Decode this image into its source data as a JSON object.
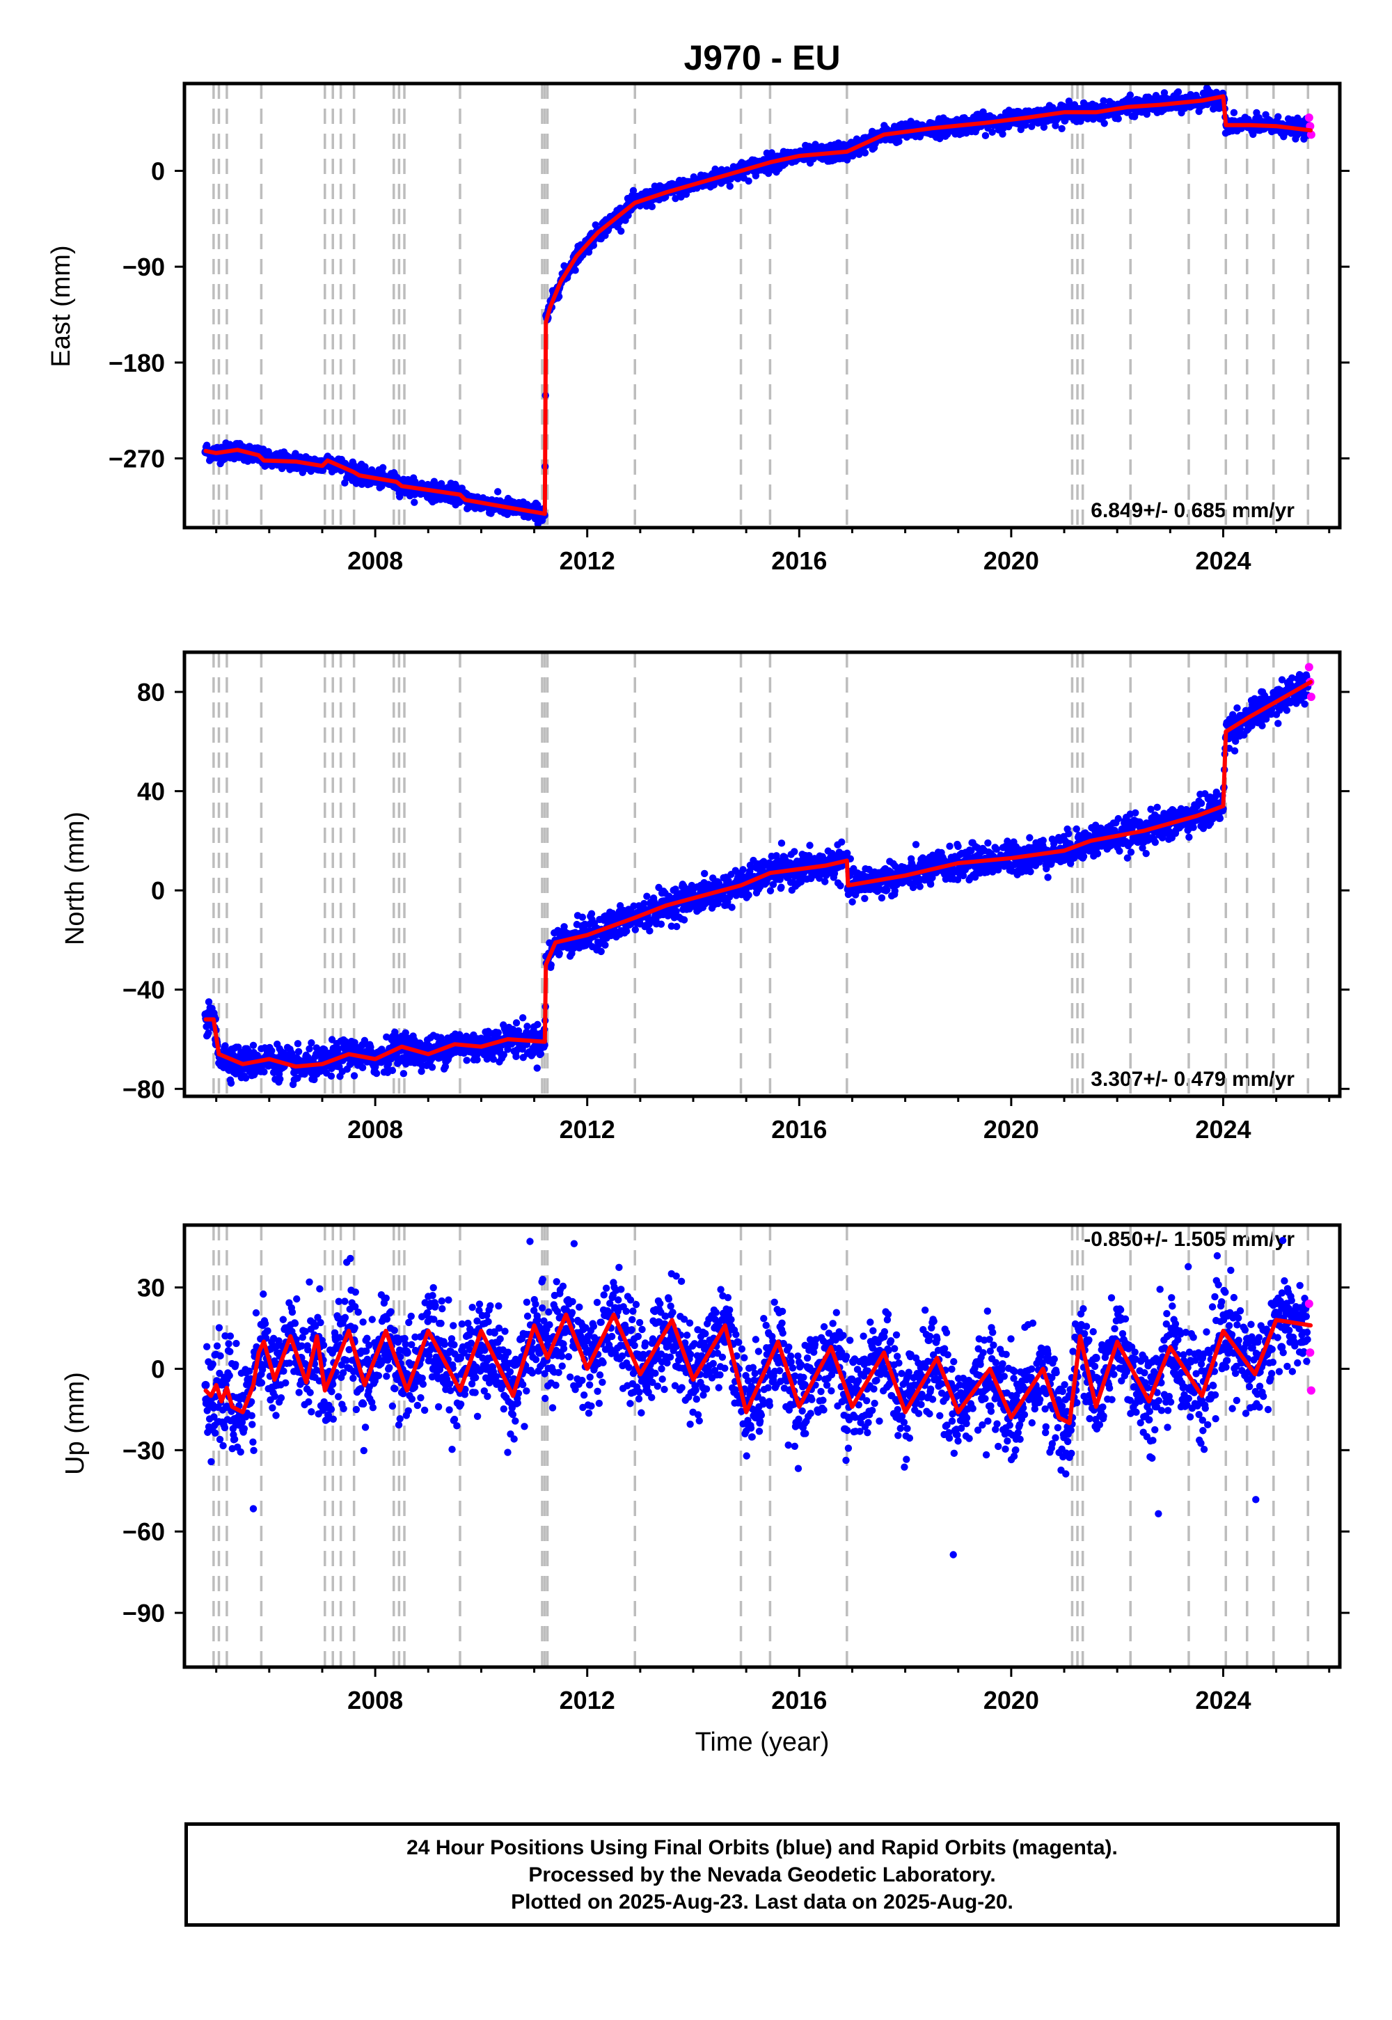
{
  "chart_data": {
    "type": "scatter",
    "title": "J970 - EU",
    "xlabel": "Time (year)",
    "x_range": [
      2004.4,
      2026.2
    ],
    "x_ticks": [
      2008,
      2012,
      2016,
      2020,
      2024
    ],
    "x_ticklabels": [
      "2008",
      "2012",
      "2016",
      "2020",
      "2024"
    ],
    "grid": false,
    "colors": {
      "final_orbits": "#0000ff",
      "rapid_orbits": "#ff00ff",
      "model_fit": "#ff0000",
      "event_lines": "#bdbdbd"
    },
    "event_lines_year": [
      2004.95,
      2005.05,
      2005.2,
      2005.85,
      2007.05,
      2007.2,
      2007.35,
      2007.6,
      2008.35,
      2008.45,
      2008.55,
      2009.6,
      2011.15,
      2011.2,
      2011.25,
      2012.9,
      2014.9,
      2015.45,
      2016.9,
      2021.15,
      2021.25,
      2021.35,
      2022.25,
      2023.35,
      2024.05,
      2024.45,
      2024.95,
      2025.6
    ],
    "panels": [
      {
        "name": "east",
        "ylabel": "East (mm)",
        "ylim": [
          -335,
          82
        ],
        "y_ticks": [
          0,
          -90,
          -180,
          -270
        ],
        "y_ticklabels": [
          "0",
          "−90",
          "−180",
          "−270"
        ],
        "rate_label": "6.849+/- 0.685 mm/yr",
        "rate_position": "bottom-right",
        "model_fit": {
          "x": [
            2004.8,
            2005.0,
            2005.4,
            2005.8,
            2005.9,
            2006.5,
            2007.0,
            2007.1,
            2007.6,
            2007.7,
            2008.4,
            2008.5,
            2009.6,
            2009.7,
            2010.5,
            2011.2,
            2011.22,
            2011.3,
            2011.5,
            2011.8,
            2012.2,
            2012.9,
            2013.5,
            2014.2,
            2014.9,
            2015.45,
            2016.0,
            2016.9,
            2017.6,
            2018.5,
            2019.5,
            2020.3,
            2021.0,
            2021.6,
            2022.2,
            2022.8,
            2023.6,
            2024.0,
            2024.05,
            2024.5,
            2025.0,
            2025.65
          ],
          "y": [
            -263,
            -265,
            -262,
            -267,
            -272,
            -273,
            -277,
            -272,
            -283,
            -286,
            -292,
            -296,
            -304,
            -309,
            -316,
            -322,
            -142,
            -128,
            -104,
            -80,
            -58,
            -30,
            -20,
            -10,
            0,
            8,
            14,
            18,
            34,
            40,
            45,
            50,
            55,
            55,
            60,
            62,
            66,
            70,
            43,
            43,
            42,
            38
          ]
        },
        "final_orbits": {
          "x": [
            2004.8,
            2005.3,
            2006.0,
            2006.8,
            2007.5,
            2008.2,
            2009.0,
            2009.8,
            2010.5,
            2011.1,
            2011.25,
            2011.6,
            2012.0,
            2012.5,
            2013.0,
            2013.8,
            2014.6,
            2015.5,
            2016.5,
            2017.5,
            2018.5,
            2019.5,
            2020.5,
            2021.5,
            2022.5,
            2023.5,
            2024.2,
            2024.8,
            2025.5
          ],
          "y": [
            -264,
            -262,
            -272,
            -275,
            -284,
            -292,
            -300,
            -308,
            -315,
            -322,
            -138,
            -100,
            -72,
            -50,
            -28,
            -15,
            -4,
            10,
            17,
            35,
            42,
            48,
            52,
            55,
            62,
            66,
            43,
            41,
            38
          ]
        },
        "rapid_orbits": {
          "x": [
            2025.62,
            2025.64,
            2025.66
          ],
          "y": [
            50,
            42,
            34
          ]
        }
      },
      {
        "name": "north",
        "ylabel": "North (mm)",
        "ylim": [
          -83,
          96
        ],
        "y_ticks": [
          80,
          40,
          0,
          -40,
          -80
        ],
        "y_ticklabels": [
          "80",
          "40",
          "0",
          "−40",
          "−80"
        ],
        "rate_label": "3.307+/- 0.479 mm/yr",
        "rate_position": "bottom-right",
        "model_fit": {
          "x": [
            2004.8,
            2004.95,
            2005.05,
            2005.5,
            2006.0,
            2006.5,
            2007.0,
            2007.5,
            2008.0,
            2008.5,
            2009.0,
            2009.5,
            2010.0,
            2010.5,
            2011.2,
            2011.22,
            2011.4,
            2012.0,
            2012.9,
            2013.5,
            2014.9,
            2015.45,
            2016.5,
            2016.9,
            2016.92,
            2018.0,
            2019.0,
            2020.0,
            2021.0,
            2021.5,
            2022.5,
            2023.5,
            2024.0,
            2024.05,
            2024.5,
            2025.0,
            2025.65
          ],
          "y": [
            -52,
            -52,
            -66,
            -70,
            -68,
            -71,
            -70,
            -66,
            -68,
            -63,
            -66,
            -62,
            -63,
            -60,
            -61,
            -30,
            -21,
            -18,
            -11,
            -6,
            2,
            7,
            10,
            12,
            2,
            6,
            11,
            13,
            16,
            20,
            24,
            30,
            34,
            64,
            70,
            76,
            84
          ]
        },
        "final_orbits": {
          "x": [
            2004.8,
            2005.0,
            2005.5,
            2006.2,
            2007.0,
            2007.8,
            2008.6,
            2009.4,
            2010.2,
            2011.1,
            2011.3,
            2012.0,
            2012.8,
            2013.6,
            2014.4,
            2015.2,
            2016.0,
            2016.8,
            2017.5,
            2018.5,
            2019.5,
            2020.5,
            2021.5,
            2022.5,
            2023.5,
            2024.2,
            2024.8,
            2025.5
          ],
          "y": [
            -50,
            -62,
            -70,
            -72,
            -70,
            -67,
            -65,
            -64,
            -62,
            -60,
            -26,
            -18,
            -12,
            -6,
            0,
            4,
            9,
            10,
            4,
            8,
            12,
            15,
            20,
            25,
            30,
            66,
            74,
            82
          ]
        },
        "rapid_orbits": {
          "x": [
            2025.62,
            2025.64,
            2025.66
          ],
          "y": [
            90,
            84,
            78
          ]
        }
      },
      {
        "name": "up",
        "ylabel": "Up (mm)",
        "ylim": [
          -110,
          53
        ],
        "y_ticks": [
          30,
          0,
          -30,
          -60,
          -90
        ],
        "y_ticklabels": [
          "30",
          "0",
          "−30",
          "−60",
          "−90"
        ],
        "rate_label": "-0.850+/- 1.505 mm/yr",
        "rate_position": "top-right",
        "model_fit": {
          "x": [
            2004.8,
            2004.9,
            2005.0,
            2005.1,
            2005.2,
            2005.3,
            2005.5,
            2005.7,
            2005.8,
            2005.9,
            2006.1,
            2006.4,
            2006.7,
            2006.9,
            2007.05,
            2007.3,
            2007.5,
            2007.8,
            2008.2,
            2008.6,
            2009.0,
            2009.6,
            2010.0,
            2010.6,
            2011.0,
            2011.25,
            2011.6,
            2012.0,
            2012.5,
            2013.0,
            2013.6,
            2014.0,
            2014.6,
            2015.0,
            2015.6,
            2016.0,
            2016.6,
            2017.0,
            2017.6,
            2018.0,
            2018.6,
            2019.0,
            2019.6,
            2020.0,
            2020.6,
            2020.9,
            2021.1,
            2021.3,
            2021.6,
            2022.0,
            2022.6,
            2023.0,
            2023.6,
            2024.0,
            2024.6,
            2025.0,
            2025.65
          ],
          "y": [
            -8,
            -10,
            -6,
            -12,
            -7,
            -14,
            -16,
            -6,
            6,
            10,
            -4,
            12,
            -5,
            12,
            -8,
            4,
            14,
            -6,
            14,
            -8,
            14,
            -8,
            14,
            -10,
            16,
            4,
            20,
            0,
            20,
            -2,
            18,
            -4,
            16,
            -16,
            10,
            -14,
            8,
            -14,
            6,
            -16,
            4,
            -16,
            0,
            -18,
            0,
            -18,
            -20,
            12,
            -14,
            10,
            -12,
            8,
            -10,
            14,
            -2,
            18,
            16
          ]
        },
        "final_orbits": {
          "x": [
            2004.8,
            2005.2,
            2005.6,
            2006.1,
            2006.6,
            2007.1,
            2007.6,
            2008.1,
            2008.6,
            2009.1,
            2009.6,
            2010.1,
            2010.6,
            2011.1,
            2011.6,
            2012.1,
            2012.6,
            2013.1,
            2013.6,
            2014.1,
            2014.6,
            2015.1,
            2015.6,
            2016.1,
            2016.6,
            2017.1,
            2017.6,
            2018.1,
            2018.6,
            2019.1,
            2019.6,
            2020.1,
            2020.6,
            2021.1,
            2021.6,
            2022.1,
            2022.6,
            2023.1,
            2023.6,
            2024.1,
            2024.6,
            2025.1,
            2025.5
          ],
          "y": [
            -6,
            -14,
            -4,
            8,
            4,
            -2,
            10,
            2,
            6,
            0,
            4,
            0,
            2,
            6,
            14,
            4,
            14,
            0,
            12,
            2,
            10,
            -8,
            4,
            -6,
            2,
            -8,
            0,
            -10,
            -4,
            -10,
            -6,
            -12,
            -8,
            -10,
            4,
            0,
            2,
            -2,
            4,
            6,
            10,
            8,
            10
          ]
        },
        "rapid_orbits": {
          "x": [
            2025.62,
            2025.64,
            2025.66
          ],
          "y": [
            24,
            6,
            -8
          ]
        }
      }
    ]
  },
  "caption": {
    "line1": "24 Hour Positions Using Final Orbits (blue) and Rapid Orbits (magenta).",
    "line2": "Processed by the Nevada Geodetic Laboratory.",
    "line3": "Plotted on 2025-Aug-23. Last data on 2025-Aug-20."
  }
}
